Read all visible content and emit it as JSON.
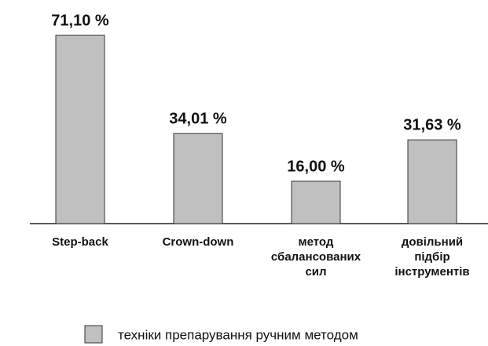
{
  "chart_data": {
    "type": "bar",
    "categories": [
      "Step-back",
      "Crown-down",
      "метод\nсбалансованих\nсил",
      "довільний\nпідбір\nінструментів"
    ],
    "series": [
      {
        "name": "техніки препарування ручним методом",
        "color": "#c0c0c0",
        "values": [
          71.1,
          34.01,
          16.0,
          31.63
        ],
        "value_labels": [
          "71,10 %",
          "34,01 %",
          "16,00 %",
          "31,63 %"
        ]
      }
    ]
  }
}
